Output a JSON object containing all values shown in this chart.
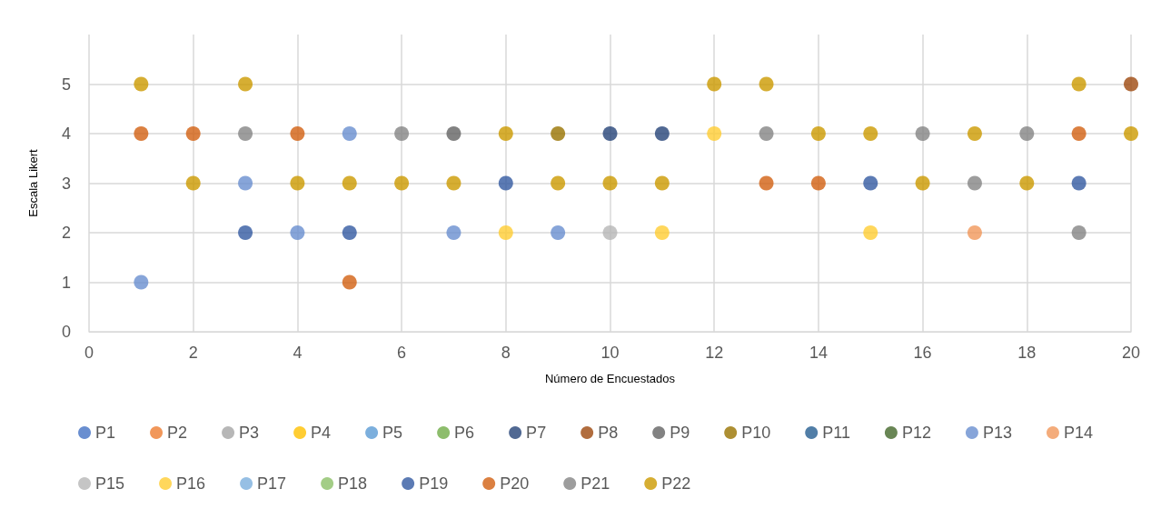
{
  "chart_data": {
    "type": "scatter",
    "xlabel": "Número de Encuestados",
    "ylabel": "Escala Likert",
    "x": [
      1,
      2,
      3,
      4,
      5,
      6,
      7,
      8,
      9,
      10,
      11,
      12,
      13,
      14,
      15,
      16,
      17,
      18,
      19,
      20
    ],
    "xlim": [
      0,
      20
    ],
    "xticks": [
      0,
      2,
      4,
      6,
      8,
      10,
      12,
      14,
      16,
      18,
      20
    ],
    "ylim": [
      0,
      6
    ],
    "yticks": [
      0,
      1,
      2,
      3,
      4,
      5
    ],
    "grid": true,
    "legend": "bottom",
    "marker": "circle",
    "series": [
      {
        "name": "P1",
        "color": "#4472c4",
        "values": [
          null,
          null,
          null,
          null,
          null,
          null,
          null,
          null,
          null,
          null,
          null,
          null,
          null,
          null,
          null,
          null,
          null,
          null,
          null,
          null
        ]
      },
      {
        "name": "P2",
        "color": "#ed7d31",
        "values": [
          null,
          null,
          null,
          null,
          null,
          null,
          null,
          null,
          null,
          null,
          null,
          null,
          null,
          null,
          null,
          null,
          null,
          null,
          null,
          null
        ]
      },
      {
        "name": "P3",
        "color": "#a5a5a5",
        "values": [
          null,
          null,
          null,
          null,
          null,
          null,
          null,
          null,
          null,
          null,
          null,
          null,
          null,
          null,
          null,
          null,
          null,
          null,
          null,
          null
        ]
      },
      {
        "name": "P4",
        "color": "#ffc000",
        "values": [
          null,
          null,
          null,
          null,
          null,
          null,
          null,
          null,
          null,
          null,
          null,
          null,
          null,
          null,
          null,
          null,
          null,
          null,
          null,
          null
        ]
      },
      {
        "name": "P5",
        "color": "#5b9bd5",
        "values": [
          null,
          null,
          null,
          null,
          null,
          null,
          null,
          null,
          null,
          null,
          null,
          null,
          null,
          null,
          null,
          null,
          null,
          null,
          null,
          null
        ]
      },
      {
        "name": "P6",
        "color": "#70ad47",
        "values": [
          null,
          null,
          null,
          null,
          null,
          null,
          null,
          null,
          null,
          null,
          null,
          null,
          null,
          null,
          null,
          null,
          null,
          null,
          null,
          null
        ]
      },
      {
        "name": "P7",
        "color": "#264478",
        "values": [
          null,
          null,
          null,
          null,
          null,
          null,
          null,
          null,
          null,
          4,
          4,
          null,
          null,
          null,
          null,
          null,
          null,
          null,
          null,
          null
        ]
      },
      {
        "name": "P8",
        "color": "#9e480e",
        "values": [
          null,
          null,
          null,
          null,
          null,
          null,
          null,
          null,
          null,
          null,
          null,
          null,
          null,
          null,
          null,
          null,
          null,
          null,
          null,
          5
        ]
      },
      {
        "name": "P9",
        "color": "#636363",
        "values": [
          null,
          null,
          null,
          null,
          null,
          null,
          4,
          null,
          null,
          null,
          null,
          null,
          null,
          null,
          null,
          null,
          null,
          null,
          null,
          null
        ]
      },
      {
        "name": "P10",
        "color": "#997300",
        "values": [
          null,
          null,
          null,
          null,
          null,
          null,
          null,
          null,
          4,
          null,
          null,
          null,
          null,
          null,
          null,
          null,
          null,
          null,
          null,
          null
        ]
      },
      {
        "name": "P11",
        "color": "#255e91",
        "values": [
          null,
          null,
          null,
          null,
          null,
          null,
          null,
          null,
          null,
          null,
          null,
          null,
          null,
          null,
          null,
          null,
          null,
          null,
          null,
          null
        ]
      },
      {
        "name": "P12",
        "color": "#43682b",
        "values": [
          null,
          null,
          null,
          null,
          null,
          null,
          null,
          null,
          null,
          null,
          null,
          null,
          null,
          null,
          null,
          null,
          null,
          null,
          null,
          null
        ]
      },
      {
        "name": "P13",
        "color": "#698ed0",
        "values": [
          1,
          null,
          3,
          2,
          4,
          null,
          2,
          null,
          2,
          null,
          null,
          null,
          null,
          null,
          null,
          null,
          null,
          null,
          null,
          null
        ]
      },
      {
        "name": "P14",
        "color": "#f1975a",
        "values": [
          null,
          null,
          null,
          null,
          null,
          null,
          null,
          null,
          null,
          null,
          null,
          null,
          null,
          null,
          null,
          null,
          2,
          null,
          null,
          null
        ]
      },
      {
        "name": "P15",
        "color": "#b7b7b7",
        "values": [
          null,
          null,
          null,
          null,
          null,
          null,
          null,
          null,
          null,
          2,
          null,
          null,
          null,
          null,
          null,
          null,
          null,
          null,
          null,
          null
        ]
      },
      {
        "name": "P16",
        "color": "#ffcd33",
        "values": [
          null,
          null,
          null,
          null,
          null,
          null,
          null,
          2,
          null,
          null,
          2,
          4,
          null,
          null,
          2,
          null,
          null,
          null,
          null,
          null
        ]
      },
      {
        "name": "P17",
        "color": "#7cafdd",
        "values": [
          null,
          null,
          null,
          null,
          null,
          null,
          null,
          null,
          null,
          null,
          null,
          null,
          null,
          null,
          null,
          null,
          null,
          null,
          null,
          null
        ]
      },
      {
        "name": "P18",
        "color": "#8cc168",
        "values": [
          null,
          null,
          null,
          null,
          null,
          null,
          null,
          null,
          null,
          null,
          null,
          null,
          null,
          null,
          null,
          null,
          null,
          null,
          null,
          null
        ]
      },
      {
        "name": "P19",
        "color": "#335aa1",
        "values": [
          null,
          null,
          2,
          null,
          2,
          null,
          null,
          3,
          null,
          null,
          null,
          null,
          null,
          null,
          3,
          null,
          null,
          null,
          3,
          null
        ]
      },
      {
        "name": "P20",
        "color": "#d26012",
        "values": [
          4,
          4,
          null,
          4,
          1,
          null,
          null,
          null,
          null,
          null,
          null,
          null,
          3,
          3,
          null,
          null,
          null,
          null,
          4,
          null
        ]
      },
      {
        "name": "P21",
        "color": "#848484",
        "values": [
          null,
          null,
          4,
          null,
          null,
          4,
          null,
          null,
          null,
          null,
          null,
          null,
          4,
          null,
          null,
          4,
          3,
          4,
          2,
          null
        ]
      },
      {
        "name": "P22",
        "color": "#cc9a00",
        "values": [
          5,
          3,
          5,
          3,
          3,
          3,
          3,
          4,
          3,
          3,
          3,
          5,
          5,
          4,
          4,
          3,
          4,
          3,
          5,
          4
        ]
      }
    ]
  }
}
